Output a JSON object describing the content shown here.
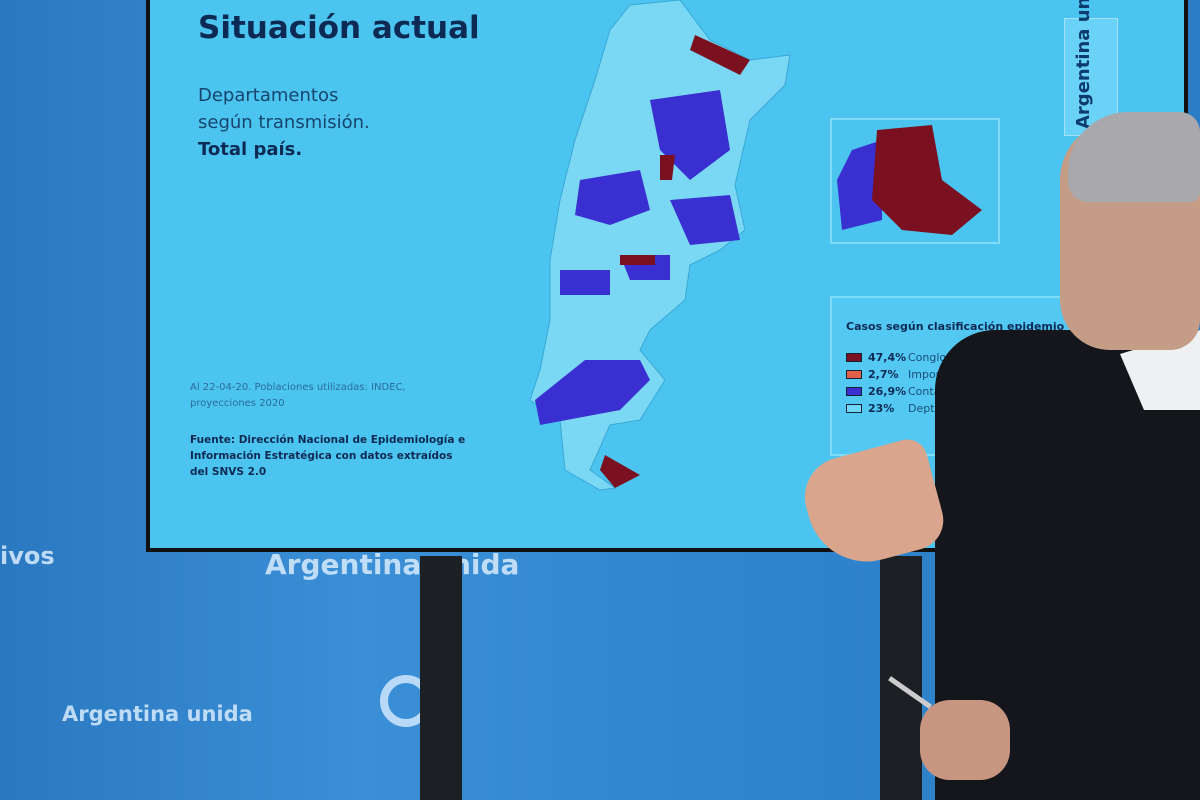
{
  "slide": {
    "title": "Situación actual",
    "subtitle_line1": "Departamentos",
    "subtitle_line2": "según transmisión.",
    "subtitle_line3": "Total país.",
    "note": "Al 22-04-20. Poblaciones utilizadas: INDEC, proyecciones 2020",
    "source": "Fuente: Dirección Nacional de Epidemiología e Información Estratégica con datos extraídos del SNVS 2.0",
    "brand": "Argentina unida",
    "legend": {
      "title": "Casos según clasificación epidemio",
      "items": [
        {
          "pct": "47,4%",
          "label": "Conglomerado / comunitario",
          "color": "#7a1020"
        },
        {
          "pct": "2,7%",
          "label": "Importado",
          "color": "#e0604a"
        },
        {
          "pct": "26,9%",
          "label": "Contacto estrecho c/importado",
          "color": "#3a2fd0"
        },
        {
          "pct": "23%",
          "label": "Deptos sin casos",
          "color": "#6fd8f6"
        }
      ]
    }
  },
  "wall": {
    "left_text": "ivos",
    "center_text": "Argentina unida",
    "lower_text": "Argentina unida"
  },
  "colors": {
    "screen": "#4cc4f0",
    "wall": "#2f86cf"
  }
}
